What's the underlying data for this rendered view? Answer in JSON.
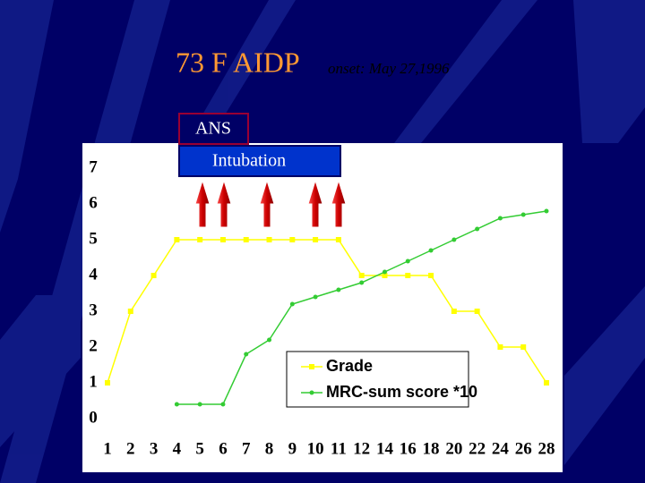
{
  "chart_data": {
    "type": "line",
    "title": "73 F AIDP",
    "subtitle": "onset: May 27,1996",
    "annotations": [
      "ANS",
      "Intubation"
    ],
    "categories": [
      "1",
      "2",
      "3",
      "4",
      "5",
      "6",
      "7",
      "8",
      "9",
      "10",
      "11",
      "12",
      "14",
      "16",
      "18",
      "20",
      "22",
      "24",
      "26",
      "28"
    ],
    "series": [
      {
        "name": "Grade",
        "color": "#ffff00",
        "marker": "square",
        "values": [
          1,
          3,
          4,
          5,
          5,
          5,
          5,
          5,
          5,
          5,
          5,
          4,
          4,
          4,
          4,
          3,
          3,
          2,
          2,
          1
        ]
      },
      {
        "name": "MRC-sum score *10",
        "color": "#33cc33",
        "marker": "circle",
        "values": [
          null,
          null,
          null,
          0.4,
          0.4,
          0.4,
          1.8,
          2.2,
          3.2,
          3.4,
          3.6,
          3.8,
          4.1,
          4.4,
          4.7,
          5.0,
          5.3,
          5.6,
          5.7,
          5.8
        ]
      }
    ],
    "ylim": [
      0,
      7
    ],
    "yticks": [
      0,
      1,
      2,
      3,
      4,
      5,
      6,
      7
    ],
    "grid": false
  }
}
